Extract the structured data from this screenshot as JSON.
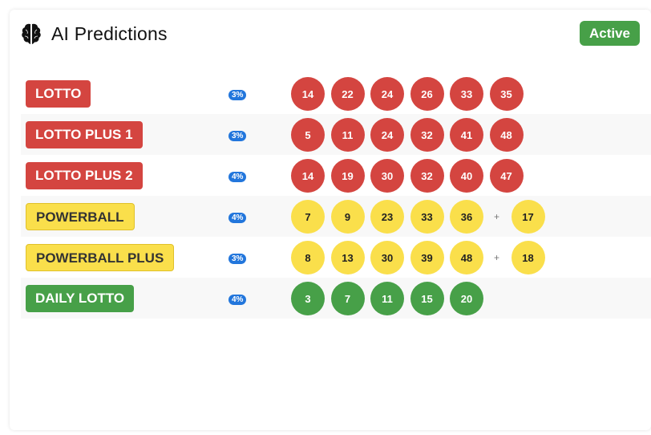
{
  "header": {
    "title": "AI Predictions",
    "status": "Active",
    "icon": "brain-icon"
  },
  "colors": {
    "red": "#d44540",
    "yellow": "#fadf4b",
    "green": "#47a048",
    "percent_badge": "#2276dc"
  },
  "games": [
    {
      "name": "LOTTO",
      "color": "red",
      "percent": "3%",
      "numbers": [
        "14",
        "22",
        "24",
        "26",
        "33",
        "35"
      ],
      "bonus": null
    },
    {
      "name": "LOTTO PLUS 1",
      "color": "red",
      "percent": "3%",
      "numbers": [
        "5",
        "11",
        "24",
        "32",
        "41",
        "48"
      ],
      "bonus": null
    },
    {
      "name": "LOTTO PLUS 2",
      "color": "red",
      "percent": "4%",
      "numbers": [
        "14",
        "19",
        "30",
        "32",
        "40",
        "47"
      ],
      "bonus": null
    },
    {
      "name": "POWERBALL",
      "color": "yellow",
      "percent": "4%",
      "numbers": [
        "7",
        "9",
        "23",
        "33",
        "36"
      ],
      "bonus": "17"
    },
    {
      "name": "POWERBALL PLUS",
      "color": "yellow",
      "percent": "3%",
      "numbers": [
        "8",
        "13",
        "30",
        "39",
        "48"
      ],
      "bonus": "18"
    },
    {
      "name": "DAILY LOTTO",
      "color": "green",
      "percent": "4%",
      "numbers": [
        "3",
        "7",
        "11",
        "15",
        "20"
      ],
      "bonus": null
    }
  ],
  "plus_symbol": "+"
}
